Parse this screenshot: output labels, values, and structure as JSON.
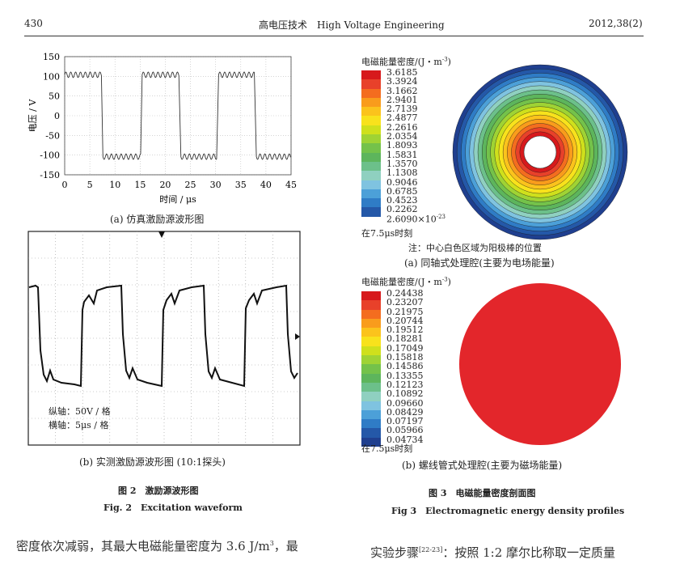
{
  "header": {
    "page_number": "430",
    "journal": "高电压技术　High Voltage Engineering",
    "issue": "2012,38(2)"
  },
  "fig2a": {
    "ylabel": "电压 / V",
    "xlabel": "时间 / μs",
    "yticks": [
      "150",
      "100",
      "50",
      "0",
      "-50",
      "-100",
      "-150"
    ],
    "xticks": [
      "0",
      "5",
      "10",
      "15",
      "20",
      "25",
      "30",
      "35",
      "40",
      "45"
    ],
    "caption": "(a) 仿真激励源波形图"
  },
  "chart_data": {
    "type": "line",
    "title": "",
    "xlabel": "时间 / μs",
    "ylabel": "电压 / V",
    "xlim": [
      0,
      45
    ],
    "ylim": [
      -150,
      150
    ],
    "series": [
      {
        "values_description": "square wave ±100 V with ripple",
        "x": [
          0,
          0.5,
          7,
          7.6,
          8,
          15,
          15.6,
          16,
          22.5,
          23.1,
          23.5,
          30,
          30.6,
          31,
          37.5,
          38.1,
          38.5,
          45
        ],
        "y": [
          100,
          112,
          112,
          -100,
          -112,
          -112,
          100,
          112,
          112,
          -100,
          -112,
          -112,
          100,
          112,
          112,
          -100,
          -112,
          -112
        ]
      }
    ]
  },
  "fig2b": {
    "label_v": "纵轴：50V / 格",
    "label_h": "横轴：5μs / 格",
    "caption": "(b) 实测激励源波形图 (10:1探头)"
  },
  "fig3a": {
    "legend_title": "电磁能量密度/(J・m",
    "legend_title_sup": "-3",
    "legend_title_end": ")",
    "values": [
      "3.6185",
      "3.3924",
      "3.1662",
      "2.9401",
      "2.7139",
      "2.4877",
      "2.2616",
      "2.0354",
      "1.8093",
      "1.5831",
      "1.3570",
      "1.1308",
      "0.9046",
      "0.6785",
      "0.4523",
      "0.2262"
    ],
    "min_value": "2.6090×10",
    "min_value_sup": "-23",
    "time": "在7.5μs时刻",
    "note": "注：中心白色区域为阳极棒的位置",
    "caption": "(a) 同轴式处理腔(主要为电场能量)"
  },
  "fig3b": {
    "legend_title": "电磁能量密度/(J・m",
    "legend_title_sup": "-3",
    "legend_title_end": ")",
    "values": [
      "0.24438",
      "0.23207",
      "0.21975",
      "0.20744",
      "0.19512",
      "0.18281",
      "0.17049",
      "0.15818",
      "0.14586",
      "0.13355",
      "0.12123",
      "0.10892",
      "0.09660",
      "0.08429",
      "0.07197",
      "0.05966",
      "0.04734"
    ],
    "time": "在7.5μs时刻",
    "caption": "(b) 螺线管式处理腔(主要为磁场能量)"
  },
  "captions": {
    "fig2_cn": "图 2　激励源波形图",
    "fig2_en": "Fig. 2　Excitation waveform",
    "fig3_cn": "图 3　电磁能量密度剖面图",
    "fig3_en": "Fig 3　Electromagnetic energy density profiles"
  },
  "body": {
    "left_text": "密度依次减弱，其最大电磁能量密度为 3.6 J/m",
    "left_sup": "3",
    "left_end": "，最",
    "right_text": "实验步骤",
    "right_sup": "[22-23]",
    "right_end": "：按照 1:2 摩尔比称取一定质量"
  },
  "colors": {
    "scale": [
      "#d7191c",
      "#e8412a",
      "#f46d1f",
      "#f99c1c",
      "#fbc31c",
      "#f8e21c",
      "#cfe01c",
      "#9fd334",
      "#74c24a",
      "#5db55c",
      "#6cc08a",
      "#8fd0c0",
      "#7fc3e0",
      "#4ca0d8",
      "#2f7cc6",
      "#2458a8",
      "#1f3f8f"
    ]
  }
}
